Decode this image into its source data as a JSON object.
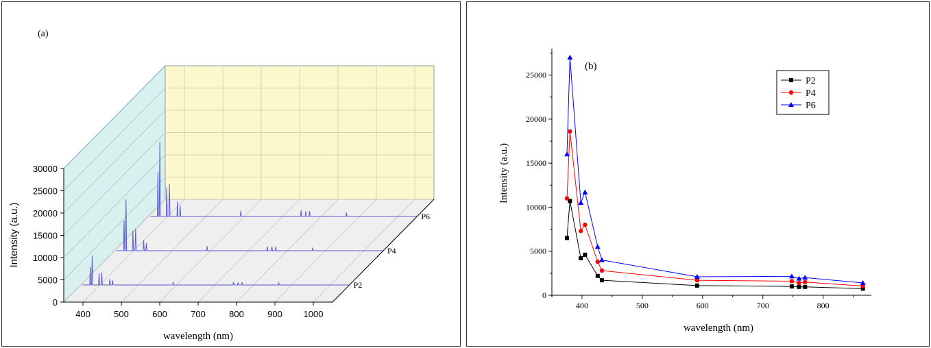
{
  "chart_data": [
    {
      "panel_label": "(a)",
      "type": "line",
      "title": "",
      "xlabel": "wavelength (nm)",
      "ylabel": "Intensity (a.u.)",
      "xlim": [
        350,
        1050
      ],
      "ylim": [
        0,
        30000
      ],
      "xticks": [
        400,
        500,
        600,
        700,
        800,
        900,
        1000
      ],
      "yticks": [
        0,
        5000,
        10000,
        15000,
        20000,
        25000,
        30000
      ],
      "series_labels": [
        "P2",
        "P4",
        "P6"
      ],
      "peak_x": [
        375,
        380,
        398,
        405,
        426,
        433,
        591,
        748,
        760,
        770,
        866
      ],
      "series": [
        {
          "name": "P2",
          "values": [
            6500,
            10700,
            4200,
            4600,
            2200,
            1700,
            1100,
            1000,
            950,
            950,
            750
          ]
        },
        {
          "name": "P4",
          "values": [
            11000,
            18600,
            7300,
            8000,
            3800,
            2800,
            1700,
            1600,
            1400,
            1500,
            1050
          ]
        },
        {
          "name": "P6",
          "values": [
            16000,
            27000,
            10500,
            11700,
            5500,
            4000,
            2100,
            2150,
            1900,
            2000,
            1400
          ]
        }
      ]
    },
    {
      "panel_label": "(b)",
      "type": "line",
      "title": "",
      "xlabel": "wavelength (nm)",
      "ylabel": "Intensity (a.u.)",
      "xlim": [
        350,
        880
      ],
      "ylim": [
        0,
        28000
      ],
      "xticks": [
        400,
        500,
        600,
        700,
        800
      ],
      "yticks": [
        0,
        5000,
        10000,
        15000,
        20000,
        25000
      ],
      "legend_position": "top-right",
      "x": [
        375,
        380,
        398,
        405,
        426,
        433,
        591,
        748,
        760,
        770,
        866
      ],
      "series": [
        {
          "name": "P2",
          "color": "#000000",
          "marker": "square",
          "values": [
            6500,
            10700,
            4200,
            4600,
            2200,
            1700,
            1100,
            1000,
            950,
            950,
            750
          ]
        },
        {
          "name": "P4",
          "color": "#ff0000",
          "marker": "circle",
          "values": [
            11000,
            18600,
            7300,
            8000,
            3800,
            2800,
            1700,
            1600,
            1400,
            1500,
            1050
          ]
        },
        {
          "name": "P6",
          "color": "#0000ff",
          "marker": "triangle",
          "values": [
            16000,
            27000,
            10500,
            11700,
            5500,
            4000,
            2100,
            2150,
            1900,
            2000,
            1400
          ]
        }
      ]
    }
  ]
}
